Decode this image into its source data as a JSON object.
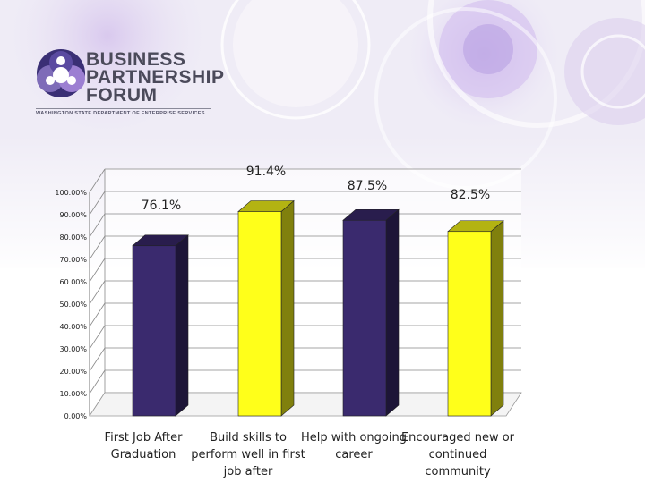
{
  "logo": {
    "line1": "BUSINESS",
    "line2": "PARTNERSHIP",
    "line3": "FORUM",
    "subtitle": "WASHINGTON STATE DEPARTMENT OF ENTERPRISE SERVICES"
  },
  "colors": {
    "bar_purple": "#3a2a6e",
    "bar_yellow": "#ffff1a"
  },
  "chart_data": {
    "type": "bar",
    "categories": [
      "First Job After Graduation",
      "Build skills to perform well in first job after",
      "Help with ongoing career",
      "Encouraged new or continued community"
    ],
    "values": [
      76.1,
      91.4,
      87.5,
      82.5
    ],
    "data_labels": [
      "76.1%",
      "91.4%",
      "87.5%",
      "82.5%"
    ],
    "bar_colors": [
      "#3a2a6e",
      "#ffff1a",
      "#3a2a6e",
      "#ffff1a"
    ],
    "ylim": [
      0,
      100
    ],
    "yticks": [
      "0.00%",
      "10.00%",
      "20.00%",
      "30.00%",
      "40.00%",
      "50.00%",
      "60.00%",
      "70.00%",
      "80.00%",
      "90.00%",
      "100.00%"
    ],
    "grid": true,
    "style": "3d-bar"
  }
}
